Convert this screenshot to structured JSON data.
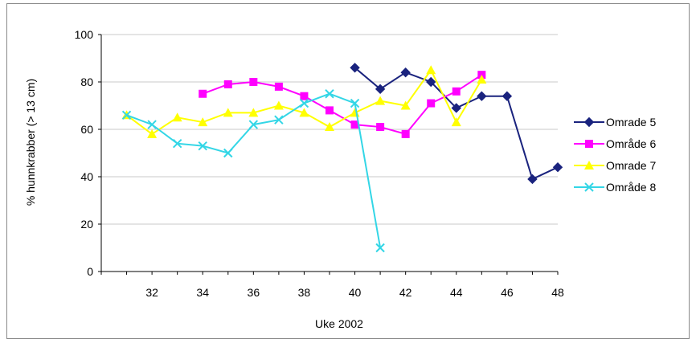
{
  "chart_data": {
    "type": "line",
    "title": "",
    "xlabel": "Uke 2002",
    "ylabel": "% hunnkrabber (> 13 cm)",
    "xlim": [
      30,
      48
    ],
    "ylim": [
      0,
      100
    ],
    "x_ticks": [
      "32",
      "34",
      "36",
      "38",
      "40",
      "42",
      "44",
      "46",
      "48"
    ],
    "y_ticks": [
      "0",
      "20",
      "40",
      "60",
      "80",
      "100"
    ],
    "grid": "horizontal",
    "legend_position": "right",
    "series": [
      {
        "name": "Omrade 5",
        "color": "#1a237e",
        "marker": "diamond",
        "points": [
          [
            40,
            86
          ],
          [
            41,
            77
          ],
          [
            42,
            84
          ],
          [
            43,
            80
          ],
          [
            44,
            69
          ],
          [
            45,
            74
          ],
          [
            46,
            74
          ],
          [
            47,
            39
          ],
          [
            48,
            44
          ]
        ]
      },
      {
        "name": "Område 6",
        "color": "#ff00ff",
        "marker": "square",
        "points": [
          [
            34,
            75
          ],
          [
            35,
            79
          ],
          [
            36,
            80
          ],
          [
            37,
            78
          ],
          [
            38,
            74
          ],
          [
            39,
            68
          ],
          [
            40,
            62
          ],
          [
            41,
            61
          ],
          [
            42,
            58
          ],
          [
            43,
            71
          ],
          [
            44,
            76
          ],
          [
            45,
            83
          ]
        ]
      },
      {
        "name": "Omrade 7",
        "color": "#ffff00",
        "marker": "triangle",
        "points": [
          [
            31,
            66
          ],
          [
            32,
            58
          ],
          [
            33,
            65
          ],
          [
            34,
            63
          ],
          [
            35,
            67
          ],
          [
            36,
            67
          ],
          [
            37,
            70
          ],
          [
            38,
            67
          ],
          [
            39,
            61
          ],
          [
            40,
            67
          ],
          [
            41,
            72
          ],
          [
            42,
            70
          ],
          [
            43,
            85
          ],
          [
            44,
            63
          ],
          [
            45,
            81
          ]
        ]
      },
      {
        "name": "Område 8",
        "color": "#33d6e6",
        "marker": "x",
        "points": [
          [
            31,
            66
          ],
          [
            32,
            62
          ],
          [
            33,
            54
          ],
          [
            34,
            53
          ],
          [
            35,
            50
          ],
          [
            36,
            62
          ],
          [
            37,
            64
          ],
          [
            38,
            71
          ],
          [
            39,
            75
          ],
          [
            40,
            71
          ],
          [
            41,
            10
          ]
        ]
      }
    ]
  }
}
